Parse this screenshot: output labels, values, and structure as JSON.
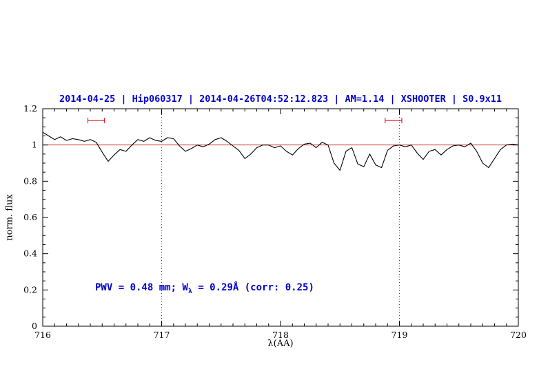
{
  "colors": {
    "title": "#0000cd",
    "annotation": "#0000cd",
    "reference_line": "#cc3333",
    "marker": "#cc0000",
    "spectrum": "#000000",
    "dotted_line": "#444444"
  },
  "annotation": {
    "prefix": "PWV = 0.48 mm; W",
    "sub": "λ",
    "suffix": " = 0.29Å (corr: 0.25)"
  },
  "chart_data": {
    "type": "line",
    "title": "2014-04-25 | Hip060317 | 2014-04-26T04:52:12.823 | AM=1.14 | XSHOOTER | S0.9x11",
    "xlabel": "λ(AA)",
    "ylabel": "norm. flux",
    "xlim": [
      716,
      720
    ],
    "ylim": [
      0,
      1.2
    ],
    "grid": false,
    "x_ticks": [
      716,
      717,
      718,
      719,
      720
    ],
    "x_tick_labels": [
      "716",
      "717",
      "718",
      "719",
      "720"
    ],
    "x_minor_step": 0.1,
    "y_ticks": [
      0,
      0.2,
      0.4,
      0.6,
      0.8,
      1,
      1.2
    ],
    "y_tick_labels": [
      "0",
      "0.2",
      "0.4",
      "0.6",
      "0.8",
      "1",
      "1.2"
    ],
    "y_minor_step": 0.05,
    "reference_line_y": 1.0,
    "dotted_vlines": [
      717,
      719
    ],
    "markers": [
      {
        "center": 716.45,
        "halfwidth": 0.07,
        "y": 1.135
      },
      {
        "center": 718.95,
        "halfwidth": 0.07,
        "y": 1.135
      }
    ],
    "series": [
      {
        "name": "normalized-spectrum",
        "x": [
          716,
          716.05,
          716.1,
          716.15,
          716.2,
          716.25,
          716.3,
          716.35,
          716.4,
          716.45,
          716.5,
          716.55,
          716.6,
          716.65,
          716.7,
          716.75,
          716.8,
          716.85,
          716.9,
          716.95,
          717,
          717.05,
          717.1,
          717.15,
          717.2,
          717.25,
          717.3,
          717.35,
          717.4,
          717.45,
          717.5,
          717.55,
          717.6,
          717.65,
          717.7,
          717.75,
          717.8,
          717.85,
          717.9,
          717.95,
          718,
          718.05,
          718.1,
          718.15,
          718.2,
          718.25,
          718.3,
          718.35,
          718.4,
          718.45,
          718.5,
          718.55,
          718.6,
          718.65,
          718.7,
          718.75,
          718.8,
          718.85,
          718.9,
          718.95,
          719,
          719.05,
          719.1,
          719.15,
          719.2,
          719.25,
          719.3,
          719.35,
          719.4,
          719.45,
          719.5,
          719.55,
          719.6,
          719.65,
          719.7,
          719.75,
          719.8,
          719.85,
          719.9,
          719.95,
          720
        ],
        "y": [
          1.07,
          1.05,
          1.03,
          1.045,
          1.025,
          1.035,
          1.03,
          1.02,
          1.03,
          1.015,
          0.96,
          0.91,
          0.945,
          0.975,
          0.965,
          1.0,
          1.03,
          1.02,
          1.04,
          1.025,
          1.02,
          1.04,
          1.035,
          0.995,
          0.965,
          0.98,
          1.0,
          0.99,
          1.005,
          1.03,
          1.04,
          1.02,
          0.995,
          0.97,
          0.925,
          0.95,
          0.985,
          1.0,
          1.0,
          0.985,
          0.995,
          0.965,
          0.945,
          0.98,
          1.005,
          1.01,
          0.985,
          1.015,
          1.0,
          0.9,
          0.86,
          0.965,
          0.985,
          0.895,
          0.88,
          0.95,
          0.89,
          0.875,
          0.97,
          0.995,
          1.0,
          0.99,
          1.0,
          0.955,
          0.92,
          0.965,
          0.975,
          0.945,
          0.975,
          0.995,
          1.0,
          0.99,
          1.01,
          0.965,
          0.9,
          0.875,
          0.925,
          0.975,
          1.0,
          1.005,
          1.0
        ]
      }
    ]
  }
}
